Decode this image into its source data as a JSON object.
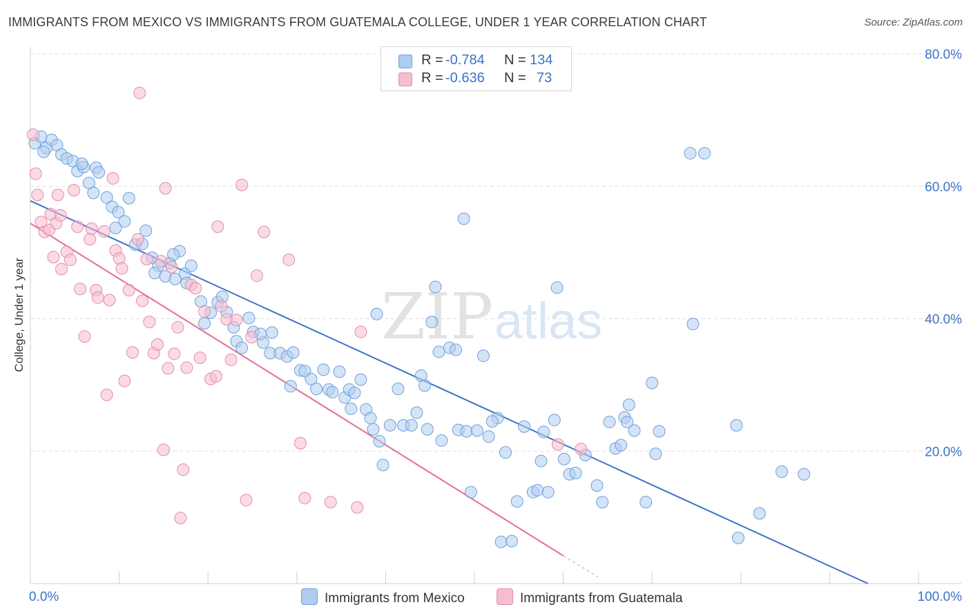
{
  "title": "IMMIGRANTS FROM MEXICO VS IMMIGRANTS FROM GUATEMALA COLLEGE, UNDER 1 YEAR CORRELATION CHART",
  "source": "Source: ZipAtlas.com",
  "watermark": {
    "zip": "ZIP",
    "atlas": "atlas"
  },
  "legend": {
    "rows": [
      {
        "r_label": "R =",
        "r_value": "-0.784",
        "n_label": "N =",
        "n_value": "134",
        "color": "#aecdf0"
      },
      {
        "r_label": "R =",
        "r_value": "-0.636",
        "n_label": "N =",
        "n_value": "73",
        "color": "#f6bdd0"
      }
    ]
  },
  "bottom_legend": [
    {
      "label": "Immigrants from Mexico",
      "color": "#aecdf0"
    },
    {
      "label": "Immigrants from Guatemala",
      "color": "#f6bdd0"
    }
  ],
  "chart_data": {
    "type": "scatter",
    "title": "IMMIGRANTS FROM MEXICO VS IMMIGRANTS FROM GUATEMALA COLLEGE, UNDER 1 YEAR CORRELATION CHART",
    "xlabel": "",
    "ylabel": "College, Under 1 year",
    "xlim": [
      0,
      100
    ],
    "ylim": [
      0,
      80
    ],
    "x_tick_labels": [
      "0.0%",
      "100.0%"
    ],
    "y_ticks": [
      20,
      40,
      60,
      80
    ],
    "y_tick_labels": [
      "20.0%",
      "40.0%",
      "60.0%",
      "80.0%"
    ],
    "grid": true,
    "legend_position": "top-center",
    "series": [
      {
        "name": "Immigrants from Mexico",
        "color": "#3b73c8",
        "fill": "#aecdf0",
        "trend": {
          "x": [
            0,
            94.3
          ],
          "y": [
            57.8,
            0
          ]
        },
        "points": [
          [
            0.5,
            66.5
          ],
          [
            1.2,
            67.5
          ],
          [
            1.8,
            65.8
          ],
          [
            2.4,
            67.0
          ],
          [
            3.0,
            66.2
          ],
          [
            3.5,
            64.8
          ],
          [
            4.1,
            64.2
          ],
          [
            4.8,
            63.8
          ],
          [
            5.3,
            62.3
          ],
          [
            6.0,
            62.9
          ],
          [
            5.8,
            63.4
          ],
          [
            6.6,
            60.5
          ],
          [
            7.4,
            62.8
          ],
          [
            7.7,
            62.1
          ],
          [
            7.1,
            59.0
          ],
          [
            8.6,
            58.3
          ],
          [
            9.2,
            56.9
          ],
          [
            9.9,
            56.1
          ],
          [
            10.6,
            54.7
          ],
          [
            11.1,
            58.2
          ],
          [
            9.6,
            53.7
          ],
          [
            11.8,
            51.2
          ],
          [
            12.6,
            51.3
          ],
          [
            13.0,
            53.3
          ],
          [
            13.7,
            49.2
          ],
          [
            14.4,
            48.0
          ],
          [
            14.0,
            46.9
          ],
          [
            15.2,
            46.4
          ],
          [
            15.7,
            48.4
          ],
          [
            16.8,
            50.2
          ],
          [
            16.1,
            49.7
          ],
          [
            16.3,
            46.0
          ],
          [
            17.4,
            46.8
          ],
          [
            18.1,
            48.0
          ],
          [
            17.6,
            45.4
          ],
          [
            19.2,
            42.6
          ],
          [
            20.3,
            40.9
          ],
          [
            19.6,
            39.3
          ],
          [
            21.1,
            42.5
          ],
          [
            21.6,
            43.3
          ],
          [
            22.1,
            41.0
          ],
          [
            22.9,
            38.7
          ],
          [
            23.2,
            36.6
          ],
          [
            24.6,
            40.1
          ],
          [
            23.8,
            35.6
          ],
          [
            25.1,
            38.0
          ],
          [
            26.2,
            36.4
          ],
          [
            25.9,
            37.7
          ],
          [
            27.0,
            34.8
          ],
          [
            27.2,
            37.9
          ],
          [
            28.1,
            34.8
          ],
          [
            28.9,
            34.3
          ],
          [
            29.6,
            34.9
          ],
          [
            29.3,
            29.8
          ],
          [
            30.4,
            32.2
          ],
          [
            30.9,
            32.1
          ],
          [
            31.6,
            30.9
          ],
          [
            32.2,
            29.4
          ],
          [
            33.0,
            32.3
          ],
          [
            33.6,
            29.3
          ],
          [
            34.0,
            28.9
          ],
          [
            34.8,
            32.0
          ],
          [
            35.4,
            28.1
          ],
          [
            35.9,
            29.3
          ],
          [
            36.1,
            26.4
          ],
          [
            36.5,
            28.8
          ],
          [
            37.2,
            30.8
          ],
          [
            37.8,
            26.3
          ],
          [
            38.3,
            25.0
          ],
          [
            38.6,
            23.3
          ],
          [
            39.3,
            21.5
          ],
          [
            39.0,
            40.7
          ],
          [
            39.7,
            17.9
          ],
          [
            40.5,
            23.9
          ],
          [
            41.4,
            29.4
          ],
          [
            42.0,
            23.9
          ],
          [
            42.9,
            23.9
          ],
          [
            43.5,
            25.8
          ],
          [
            44.0,
            31.4
          ],
          [
            44.7,
            23.3
          ],
          [
            44.4,
            29.9
          ],
          [
            45.2,
            39.5
          ],
          [
            45.6,
            44.8
          ],
          [
            46.0,
            35.0
          ],
          [
            46.3,
            21.6
          ],
          [
            47.2,
            35.6
          ],
          [
            47.9,
            35.3
          ],
          [
            48.2,
            23.2
          ],
          [
            49.1,
            23.0
          ],
          [
            48.8,
            55.1
          ],
          [
            49.6,
            13.8
          ],
          [
            50.3,
            23.1
          ],
          [
            51.6,
            22.2
          ],
          [
            51.0,
            34.4
          ],
          [
            52.6,
            25.0
          ],
          [
            52.0,
            24.5
          ],
          [
            53.5,
            19.8
          ],
          [
            53.0,
            6.3
          ],
          [
            54.2,
            6.4
          ],
          [
            54.8,
            12.4
          ],
          [
            55.6,
            23.7
          ],
          [
            56.6,
            13.8
          ],
          [
            57.1,
            14.1
          ],
          [
            57.5,
            18.5
          ],
          [
            57.8,
            22.9
          ],
          [
            58.3,
            13.8
          ],
          [
            59.0,
            24.7
          ],
          [
            59.3,
            44.7
          ],
          [
            60.1,
            18.8
          ],
          [
            60.7,
            16.5
          ],
          [
            61.4,
            16.7
          ],
          [
            62.5,
            19.4
          ],
          [
            63.8,
            14.8
          ],
          [
            64.4,
            12.3
          ],
          [
            65.2,
            24.4
          ],
          [
            65.9,
            20.4
          ],
          [
            66.5,
            20.9
          ],
          [
            66.9,
            25.1
          ],
          [
            67.4,
            27.0
          ],
          [
            67.2,
            24.4
          ],
          [
            68.0,
            23.1
          ],
          [
            69.3,
            12.3
          ],
          [
            70.0,
            30.3
          ],
          [
            70.4,
            19.6
          ],
          [
            70.8,
            23.0
          ],
          [
            74.3,
            65.0
          ],
          [
            74.6,
            39.2
          ],
          [
            75.9,
            65.0
          ],
          [
            79.7,
            6.9
          ],
          [
            79.5,
            23.9
          ],
          [
            82.1,
            10.6
          ],
          [
            84.6,
            16.9
          ],
          [
            87.1,
            16.5
          ],
          [
            1.5,
            65.2
          ]
        ]
      },
      {
        "name": "Immigrants from Guatemala",
        "color": "#e46c95",
        "fill": "#f6bdd0",
        "trend": {
          "x": [
            0,
            60
          ],
          "y": [
            54.4,
            4.2
          ]
        },
        "trend_dashed": {
          "x": [
            60,
            63.9
          ],
          "y": [
            4.2,
            1.0
          ]
        },
        "points": [
          [
            0.3,
            67.8
          ],
          [
            0.6,
            61.9
          ],
          [
            0.8,
            58.7
          ],
          [
            1.2,
            54.6
          ],
          [
            1.6,
            53.1
          ],
          [
            2.1,
            53.4
          ],
          [
            2.3,
            55.8
          ],
          [
            2.6,
            49.3
          ],
          [
            2.9,
            54.4
          ],
          [
            3.1,
            58.7
          ],
          [
            3.4,
            55.6
          ],
          [
            3.5,
            47.5
          ],
          [
            4.1,
            50.1
          ],
          [
            4.5,
            48.9
          ],
          [
            4.9,
            59.4
          ],
          [
            5.3,
            53.9
          ],
          [
            5.6,
            44.5
          ],
          [
            6.1,
            37.3
          ],
          [
            6.7,
            52.0
          ],
          [
            6.9,
            53.6
          ],
          [
            7.4,
            44.3
          ],
          [
            7.6,
            43.2
          ],
          [
            8.3,
            53.2
          ],
          [
            8.6,
            28.5
          ],
          [
            8.9,
            42.8
          ],
          [
            9.3,
            61.2
          ],
          [
            9.6,
            50.3
          ],
          [
            10.0,
            49.1
          ],
          [
            10.3,
            47.6
          ],
          [
            10.6,
            30.6
          ],
          [
            11.1,
            44.3
          ],
          [
            11.5,
            34.9
          ],
          [
            12.1,
            52.0
          ],
          [
            12.6,
            42.7
          ],
          [
            13.1,
            49.0
          ],
          [
            13.4,
            39.5
          ],
          [
            13.9,
            34.8
          ],
          [
            14.3,
            36.1
          ],
          [
            14.7,
            48.7
          ],
          [
            15.0,
            20.2
          ],
          [
            15.5,
            32.5
          ],
          [
            15.9,
            47.8
          ],
          [
            16.2,
            34.7
          ],
          [
            16.6,
            38.7
          ],
          [
            16.9,
            9.9
          ],
          [
            17.2,
            17.2
          ],
          [
            17.6,
            32.6
          ],
          [
            18.1,
            45.1
          ],
          [
            18.6,
            44.6
          ],
          [
            19.1,
            34.1
          ],
          [
            19.6,
            41.1
          ],
          [
            20.3,
            30.9
          ],
          [
            20.9,
            31.3
          ],
          [
            21.5,
            41.9
          ],
          [
            22.1,
            39.9
          ],
          [
            22.6,
            33.8
          ],
          [
            23.2,
            39.8
          ],
          [
            23.8,
            60.2
          ],
          [
            24.3,
            12.6
          ],
          [
            24.9,
            37.2
          ],
          [
            25.5,
            46.5
          ],
          [
            26.3,
            53.1
          ],
          [
            29.1,
            48.9
          ],
          [
            30.4,
            21.2
          ],
          [
            30.9,
            12.9
          ],
          [
            33.8,
            12.3
          ],
          [
            36.8,
            11.5
          ],
          [
            37.2,
            38.0
          ],
          [
            59.4,
            21.0
          ],
          [
            62.0,
            20.3
          ],
          [
            12.3,
            74.1
          ],
          [
            15.2,
            59.7
          ],
          [
            21.1,
            53.9
          ]
        ]
      }
    ]
  }
}
